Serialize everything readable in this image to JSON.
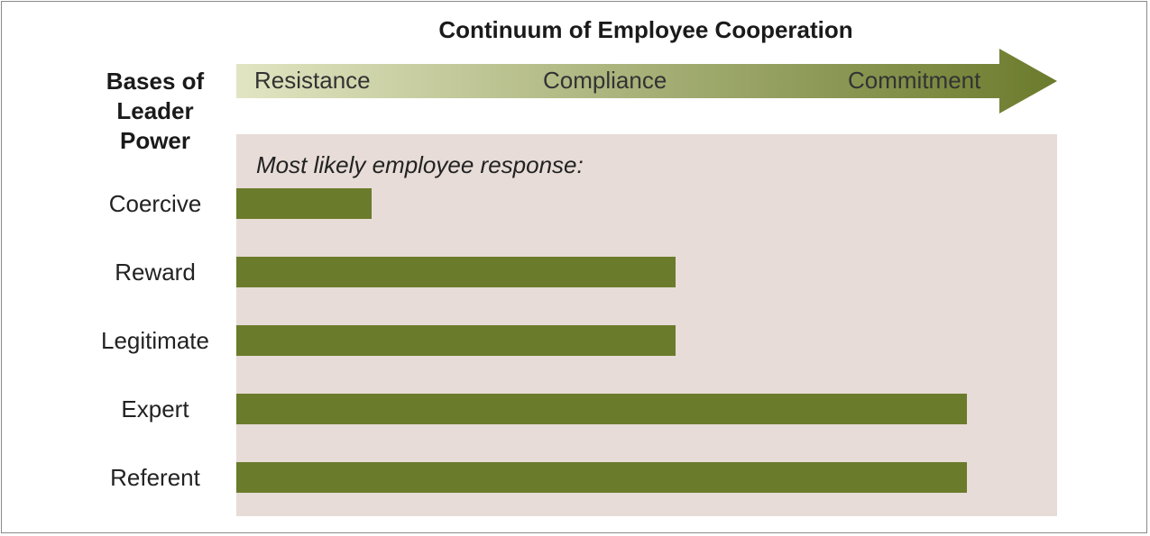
{
  "title": "Continuum of Employee Cooperation",
  "side_heading": "Bases of Leader Power",
  "continuum": {
    "stages": [
      "Resistance",
      "Compliance",
      "Commitment"
    ],
    "gradient_start": "#e2e5c2",
    "gradient_end": "#6b7b2c"
  },
  "panel": {
    "caption": "Most likely employee response:",
    "background": "#e7dcd7"
  },
  "chart_data": {
    "type": "bar",
    "orientation": "horizontal",
    "categories": [
      "Coercive",
      "Reward",
      "Legitimate",
      "Expert",
      "Referent"
    ],
    "values": [
      0.165,
      0.535,
      0.535,
      0.89,
      0.89
    ],
    "bar_color": "#6b7b2c"
  }
}
